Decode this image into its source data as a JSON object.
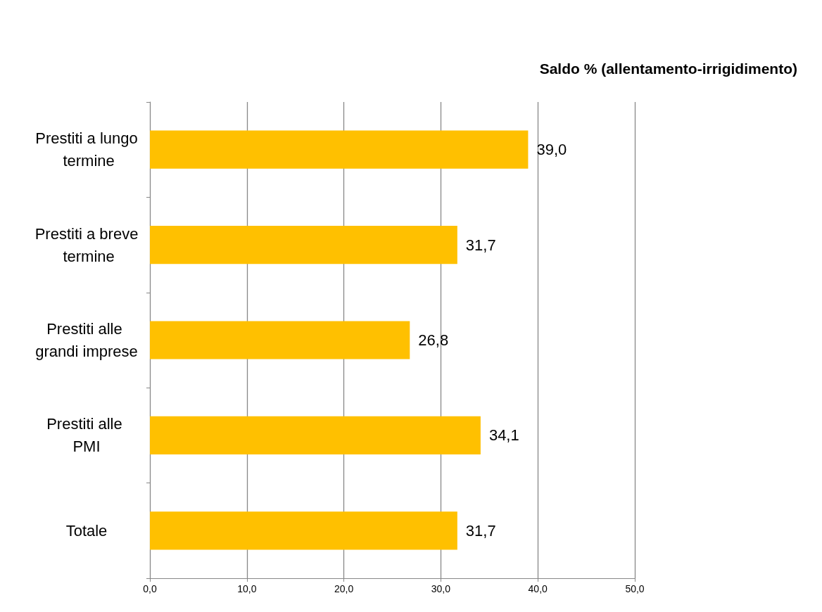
{
  "chart_data": {
    "type": "bar",
    "orientation": "horizontal",
    "title": "Saldo % (allentamento-irrigidimento)",
    "categories": [
      "Prestiti a lungo termine",
      "Prestiti a breve termine",
      "Prestiti alle grandi imprese",
      "Prestiti alle PMI",
      "Totale"
    ],
    "values": [
      39.0,
      31.7,
      26.8,
      34.1,
      31.7
    ],
    "value_labels": [
      "39,0",
      "31,7",
      "26,8",
      "34,1",
      "31,7"
    ],
    "color": "#ffc000",
    "xlim": [
      0,
      50
    ],
    "xticks": [
      {
        "value": 0,
        "label": "0,0"
      },
      {
        "value": 10,
        "label": "10,0"
      },
      {
        "value": 20,
        "label": "20,0"
      },
      {
        "value": 30,
        "label": "30,0"
      },
      {
        "value": 40,
        "label": "40,0"
      },
      {
        "value": 50,
        "label": "50,0"
      }
    ],
    "grid": "x"
  }
}
